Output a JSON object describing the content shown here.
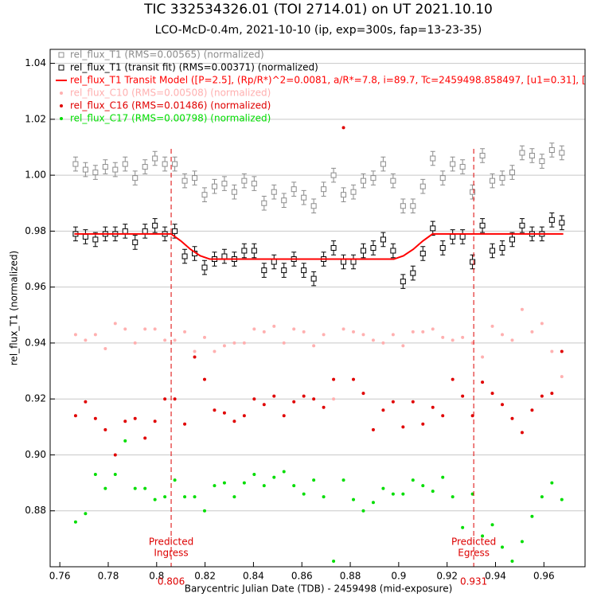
{
  "chart_data": {
    "type": "scatter",
    "title": "TIC 332534326.01 (TOI 2714.01) on UT 2021.10.10",
    "subtitle": "LCO-McD-0.4m, 2021-10-10 (ip, exp=300s, fap=13-23-35)",
    "x_label": "Barycentric Julian Date (TDB) - 2459498 (mid-exposure)",
    "y_label": "rel_flux_T1 (normalized)",
    "xlim": [
      0.756,
      0.977
    ],
    "ylim": [
      0.86,
      1.045
    ],
    "xticks": [
      0.76,
      0.78,
      0.8,
      0.82,
      0.84,
      0.86,
      0.88,
      0.9,
      0.92,
      0.94,
      0.96
    ],
    "yticks": [
      0.88,
      {
        "value": 0.9,
        "label": "0.90"
      },
      0.92,
      0.94,
      0.96,
      0.98,
      {
        "value": 1.0,
        "label": "1.00"
      },
      1.02,
      1.04
    ],
    "grid": true,
    "x": [
      0.7665,
      0.7706,
      0.7747,
      0.7788,
      0.7829,
      0.787,
      0.7911,
      0.7952,
      0.7993,
      0.8034,
      0.8075,
      0.8116,
      0.8157,
      0.8198,
      0.8239,
      0.828,
      0.8321,
      0.8362,
      0.8403,
      0.8444,
      0.8485,
      0.8526,
      0.8567,
      0.8608,
      0.8649,
      0.869,
      0.8731,
      0.8772,
      0.8813,
      0.8854,
      0.8895,
      0.8936,
      0.8977,
      0.9018,
      0.9059,
      0.91,
      0.9141,
      0.9182,
      0.9223,
      0.9264,
      0.9305,
      0.9346,
      0.9387,
      0.9428,
      0.9469,
      0.951,
      0.9551,
      0.9592,
      0.9633,
      0.9674
    ],
    "series": [
      {
        "name": "rel_flux_T1 (RMS=0.00565) (normalized)",
        "color": "#8c8c8c",
        "marker": "square",
        "values": [
          1.004,
          1.002,
          1.001,
          1.003,
          1.002,
          1.004,
          0.999,
          1.003,
          1.006,
          1.004,
          1.004,
          0.998,
          0.999,
          0.993,
          0.996,
          0.997,
          0.994,
          0.998,
          0.997,
          0.99,
          0.994,
          0.991,
          0.995,
          0.992,
          0.989,
          0.995,
          1.0,
          0.993,
          0.994,
          0.998,
          0.999,
          1.004,
          0.998,
          0.989,
          0.989,
          0.996,
          1.006,
          0.999,
          1.004,
          1.003,
          0.994,
          1.007,
          0.998,
          0.999,
          1.001,
          1.008,
          1.007,
          1.005,
          1.009,
          1.008
        ],
        "errors": [
          0.0025,
          0.0025,
          0.0025,
          0.0025,
          0.0025,
          0.0025,
          0.0025,
          0.0025,
          0.0025,
          0.0025,
          0.0025,
          0.0025,
          0.0025,
          0.0025,
          0.0025,
          0.0025,
          0.0025,
          0.0025,
          0.0025,
          0.0025,
          0.0025,
          0.0025,
          0.0025,
          0.0025,
          0.0025,
          0.0025,
          0.0025,
          0.0025,
          0.0025,
          0.0025,
          0.0025,
          0.0025,
          0.0025,
          0.0025,
          0.0025,
          0.0025,
          0.0025,
          0.0025,
          0.0025,
          0.0025,
          0.0025,
          0.0025,
          0.0025,
          0.0025,
          0.0025,
          0.0025,
          0.0025,
          0.0025,
          0.0025,
          0.0025
        ]
      },
      {
        "name": "rel_flux_T1 (transit fit) (RMS=0.00371) (normalized)",
        "color": "#000000",
        "marker": "square",
        "values": [
          0.979,
          0.978,
          0.977,
          0.979,
          0.979,
          0.98,
          0.976,
          0.98,
          0.982,
          0.979,
          0.98,
          0.971,
          0.972,
          0.967,
          0.97,
          0.971,
          0.97,
          0.973,
          0.973,
          0.966,
          0.969,
          0.966,
          0.97,
          0.966,
          0.963,
          0.97,
          0.974,
          0.969,
          0.969,
          0.973,
          0.974,
          0.977,
          0.973,
          0.962,
          0.965,
          0.972,
          0.981,
          0.974,
          0.978,
          0.978,
          0.969,
          0.982,
          0.973,
          0.974,
          0.977,
          0.982,
          0.979,
          0.979,
          0.984,
          0.983
        ],
        "errors": [
          0.0025,
          0.0025,
          0.0025,
          0.0025,
          0.0025,
          0.0025,
          0.0025,
          0.0025,
          0.0025,
          0.0025,
          0.0025,
          0.0025,
          0.0025,
          0.0025,
          0.0025,
          0.0025,
          0.0025,
          0.0025,
          0.0025,
          0.0025,
          0.0025,
          0.0025,
          0.0025,
          0.0025,
          0.0025,
          0.0025,
          0.0025,
          0.0025,
          0.0025,
          0.0025,
          0.0025,
          0.0025,
          0.0025,
          0.0025,
          0.0025,
          0.0025,
          0.0025,
          0.0025,
          0.0025,
          0.0025,
          0.0025,
          0.0025,
          0.0025,
          0.0025,
          0.0025,
          0.0025,
          0.0025,
          0.0025,
          0.0025,
          0.0025
        ]
      },
      {
        "name": "rel_flux_T1 Transit Model ([P=2.5], (Rp/R*)^2=0.0081, a/R*=7.8, i=89.7, Tc=2459498.858497, [u1=0.31], [u",
        "color": "#ff0000",
        "marker": "line",
        "x": [
          0.766,
          0.806,
          0.81,
          0.814,
          0.818,
          0.822,
          0.898,
          0.902,
          0.906,
          0.91,
          0.914,
          0.968
        ],
        "values": [
          0.979,
          0.979,
          0.9765,
          0.9735,
          0.9712,
          0.97,
          0.97,
          0.9712,
          0.9735,
          0.9765,
          0.979,
          0.979
        ]
      },
      {
        "name": "rel_flux_C10 (RMS=0.00508) (normalized)",
        "color": "#ffb0b0",
        "marker": "dot",
        "values": [
          0.943,
          0.941,
          0.943,
          0.938,
          0.947,
          0.945,
          0.94,
          0.945,
          0.945,
          0.941,
          0.941,
          0.944,
          0.937,
          0.942,
          0.937,
          0.939,
          0.94,
          0.94,
          0.945,
          0.944,
          0.946,
          0.94,
          0.945,
          0.944,
          0.939,
          0.943,
          0.92,
          0.945,
          0.944,
          0.943,
          0.941,
          0.94,
          0.943,
          0.939,
          0.944,
          0.944,
          0.945,
          0.942,
          0.941,
          0.942,
          0.94,
          0.935,
          0.946,
          0.943,
          0.941,
          0.952,
          0.944,
          0.947,
          0.937,
          0.928
        ]
      },
      {
        "name": "rel_flux_C16 (RMS=0.01486) (normalized)",
        "color": "#e00000",
        "marker": "dot",
        "values": [
          0.914,
          0.919,
          0.913,
          0.909,
          0.9,
          0.912,
          0.913,
          0.906,
          0.912,
          0.92,
          0.92,
          0.911,
          0.935,
          0.927,
          0.916,
          0.915,
          0.912,
          0.914,
          0.92,
          0.918,
          0.921,
          0.914,
          0.919,
          0.921,
          0.92,
          0.917,
          0.927,
          1.017,
          0.927,
          0.922,
          0.909,
          0.916,
          0.919,
          0.91,
          0.919,
          0.911,
          0.917,
          0.914,
          0.927,
          0.921,
          0.914,
          0.926,
          0.922,
          0.918,
          0.913,
          0.908,
          0.916,
          0.921,
          0.922,
          0.937
        ]
      },
      {
        "name": "rel_flux_C17 (RMS=0.00798) (normalized)",
        "color": "#00dd00",
        "marker": "dot",
        "values": [
          0.876,
          0.879,
          0.893,
          0.888,
          0.893,
          0.905,
          0.888,
          0.888,
          0.884,
          0.885,
          0.891,
          0.885,
          0.885,
          0.88,
          0.889,
          0.89,
          0.885,
          0.89,
          0.893,
          0.889,
          0.892,
          0.894,
          0.889,
          0.886,
          0.891,
          0.885,
          0.862,
          0.891,
          0.884,
          0.88,
          0.883,
          0.888,
          0.886,
          0.886,
          0.891,
          0.889,
          0.887,
          0.892,
          0.885,
          0.874,
          0.886,
          0.871,
          0.875,
          0.867,
          0.862,
          0.869,
          0.878,
          0.885,
          0.89,
          0.884
        ]
      }
    ],
    "markers": [
      {
        "x": 0.806,
        "lines": [
          "Predicted",
          "Ingress"
        ],
        "color": "#dd0000"
      },
      {
        "x": 0.931,
        "lines": [
          "Predicted",
          "Egress"
        ],
        "color": "#dd0000"
      }
    ]
  }
}
